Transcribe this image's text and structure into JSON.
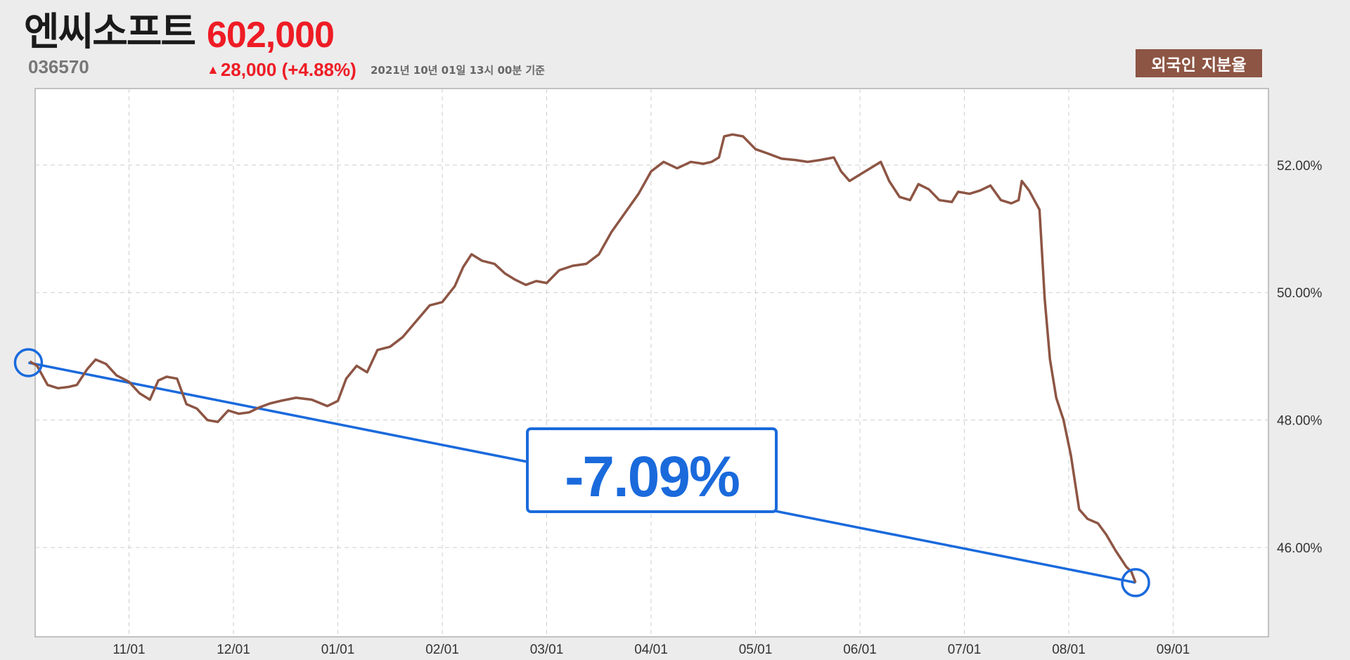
{
  "header": {
    "company_name": "엔씨소프트",
    "price": "602,000",
    "stock_code": "036570",
    "change_arrow": "▲",
    "change_text": "28,000 (+4.88%)",
    "timestamp": "2021년 10년 01일 13시 00분 기준",
    "badge_label": "외국인 지분율"
  },
  "colors": {
    "background": "#ececec",
    "plot_background": "#ffffff",
    "series_line": "#8d5544",
    "trend_line": "#1a6adc",
    "price_up": "#ee1c25",
    "badge": "#8d5544"
  },
  "annotation": {
    "change_label": "-7.09%",
    "start_value": 48.9,
    "end_value": 45.45
  },
  "chart_data": {
    "type": "line",
    "title": "",
    "xlabel": "",
    "ylabel": "",
    "x_tick_labels": [
      "11/01",
      "12/01",
      "01/01",
      "02/01",
      "03/01",
      "04/01",
      "05/01",
      "06/01",
      "07/01",
      "08/01",
      "09/01"
    ],
    "y_tick_labels": [
      "46.00%",
      "48.00%",
      "50.00%",
      "52.00%"
    ],
    "y_ticks": [
      46,
      48,
      50,
      52
    ],
    "ylim": [
      44.6,
      53.2
    ],
    "grid": true,
    "x_axis": "month index (0 = 10/01 start, 1 = 11/01, ...)",
    "series": [
      {
        "values": [
          [
            0.05,
            48.92
          ],
          [
            0.12,
            48.85
          ],
          [
            0.22,
            48.55
          ],
          [
            0.32,
            48.5
          ],
          [
            0.42,
            48.52
          ],
          [
            0.5,
            48.55
          ],
          [
            0.6,
            48.8
          ],
          [
            0.68,
            48.95
          ],
          [
            0.78,
            48.88
          ],
          [
            0.88,
            48.7
          ],
          [
            1.0,
            48.6
          ],
          [
            1.1,
            48.42
          ],
          [
            1.2,
            48.32
          ],
          [
            1.28,
            48.62
          ],
          [
            1.36,
            48.68
          ],
          [
            1.46,
            48.65
          ],
          [
            1.55,
            48.25
          ],
          [
            1.65,
            48.18
          ],
          [
            1.75,
            48.0
          ],
          [
            1.85,
            47.97
          ],
          [
            1.95,
            48.15
          ],
          [
            2.05,
            48.1
          ],
          [
            2.15,
            48.12
          ],
          [
            2.25,
            48.2
          ],
          [
            2.35,
            48.26
          ],
          [
            2.45,
            48.3
          ],
          [
            2.6,
            48.35
          ],
          [
            2.75,
            48.32
          ],
          [
            2.9,
            48.22
          ],
          [
            3.0,
            48.3
          ],
          [
            3.08,
            48.65
          ],
          [
            3.18,
            48.85
          ],
          [
            3.28,
            48.75
          ],
          [
            3.38,
            49.1
          ],
          [
            3.5,
            49.15
          ],
          [
            3.62,
            49.3
          ],
          [
            3.75,
            49.55
          ],
          [
            3.88,
            49.8
          ],
          [
            4.0,
            49.85
          ],
          [
            4.12,
            50.1
          ],
          [
            4.2,
            50.4
          ],
          [
            4.28,
            50.6
          ],
          [
            4.38,
            50.5
          ],
          [
            4.5,
            50.45
          ],
          [
            4.6,
            50.3
          ],
          [
            4.7,
            50.2
          ],
          [
            4.8,
            50.12
          ],
          [
            4.9,
            50.18
          ],
          [
            5.0,
            50.15
          ],
          [
            5.12,
            50.35
          ],
          [
            5.25,
            50.42
          ],
          [
            5.38,
            50.45
          ],
          [
            5.5,
            50.6
          ],
          [
            5.62,
            50.95
          ],
          [
            5.75,
            51.25
          ],
          [
            5.88,
            51.55
          ],
          [
            6.0,
            51.9
          ],
          [
            6.12,
            52.05
          ],
          [
            6.25,
            51.95
          ],
          [
            6.38,
            52.05
          ],
          [
            6.5,
            52.02
          ],
          [
            6.58,
            52.05
          ],
          [
            6.65,
            52.12
          ],
          [
            6.7,
            52.45
          ],
          [
            6.78,
            52.48
          ],
          [
            6.88,
            52.45
          ],
          [
            7.0,
            52.25
          ],
          [
            7.12,
            52.18
          ],
          [
            7.25,
            52.1
          ],
          [
            7.38,
            52.08
          ],
          [
            7.5,
            52.05
          ],
          [
            7.62,
            52.08
          ],
          [
            7.75,
            52.12
          ],
          [
            7.82,
            51.9
          ],
          [
            7.9,
            51.75
          ],
          [
            8.0,
            51.85
          ],
          [
            8.1,
            51.95
          ],
          [
            8.2,
            52.05
          ],
          [
            8.28,
            51.75
          ],
          [
            8.38,
            51.5
          ],
          [
            8.48,
            51.45
          ],
          [
            8.56,
            51.7
          ],
          [
            8.66,
            51.62
          ],
          [
            8.76,
            51.45
          ],
          [
            8.88,
            51.42
          ],
          [
            8.94,
            51.58
          ],
          [
            9.05,
            51.55
          ],
          [
            9.15,
            51.6
          ],
          [
            9.25,
            51.68
          ],
          [
            9.35,
            51.45
          ],
          [
            9.45,
            51.4
          ],
          [
            9.52,
            51.45
          ],
          [
            9.55,
            51.75
          ],
          [
            9.62,
            51.6
          ],
          [
            9.72,
            51.3
          ],
          [
            9.77,
            49.9
          ],
          [
            9.82,
            48.95
          ],
          [
            9.88,
            48.35
          ],
          [
            9.95,
            48.0
          ],
          [
            10.02,
            47.45
          ],
          [
            10.1,
            46.6
          ],
          [
            10.18,
            46.45
          ],
          [
            10.28,
            46.38
          ],
          [
            10.36,
            46.2
          ],
          [
            10.45,
            45.95
          ],
          [
            10.55,
            45.7
          ],
          [
            10.6,
            45.62
          ],
          [
            10.64,
            45.45
          ]
        ]
      }
    ]
  }
}
